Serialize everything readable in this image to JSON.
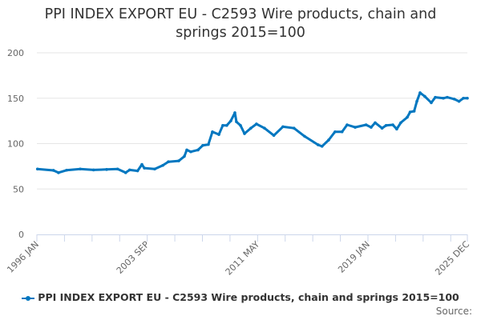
{
  "chart_data": {
    "type": "line",
    "title": "PPI INDEX EXPORT EU - C2593 Wire products, chain and springs 2015=100",
    "title_lines": [
      "PPI INDEX EXPORT EU - C2593 Wire products, chain and",
      "springs 2015=100"
    ],
    "xlabel": "",
    "ylabel": "",
    "ylim": [
      0,
      200
    ],
    "xlim": [
      1996.0,
      2025.92
    ],
    "y_ticks": [
      0,
      50,
      100,
      150,
      200
    ],
    "x_ticks": [
      {
        "label": "1996 JAN",
        "x": 1996.0
      },
      {
        "label": "2003 SEP",
        "x": 2003.67
      },
      {
        "label": "2011 MAY",
        "x": 2011.33
      },
      {
        "label": "2019 JAN",
        "x": 2019.0
      },
      {
        "label": "2025 DEC",
        "x": 2025.92
      }
    ],
    "grid": true,
    "legend": "bottom-center",
    "color": "#0077c0",
    "series": [
      {
        "name": "PPI INDEX EXPORT EU - C2593 Wire products, chain and springs 2015=100",
        "x": [
          1996.04,
          1997.15,
          1997.5,
          1998.06,
          1999.01,
          1999.94,
          2000.85,
          2001.61,
          2002.17,
          2002.45,
          2003.0,
          2003.3,
          2003.47,
          2004.19,
          2004.75,
          2005.14,
          2005.86,
          2006.25,
          2006.42,
          2006.7,
          2007.2,
          2007.53,
          2007.92,
          2008.2,
          2008.65,
          2008.92,
          2009.2,
          2009.48,
          2009.76,
          2009.87,
          2010.15,
          2010.43,
          2010.87,
          2011.26,
          2011.82,
          2012.47,
          2013.1,
          2013.87,
          2014.61,
          2015.54,
          2015.82,
          2016.28,
          2016.72,
          2017.21,
          2017.56,
          2018.12,
          2018.88,
          2019.23,
          2019.51,
          2019.99,
          2020.27,
          2020.74,
          2021.01,
          2021.29,
          2021.74,
          2021.94,
          2022.22,
          2022.41,
          2022.63,
          2022.96,
          2023.41,
          2023.69,
          2024.25,
          2024.52,
          2025.01,
          2025.34,
          2025.64,
          2025.92
        ],
        "values": [
          72,
          70.5,
          68,
          70.7,
          72,
          71,
          71.5,
          72,
          68,
          71,
          70,
          77,
          73,
          72,
          76,
          80,
          81,
          86,
          93,
          91,
          93,
          98,
          99,
          113,
          110,
          120,
          120,
          125,
          134,
          124,
          120,
          111,
          117,
          121.6,
          117,
          109,
          118.6,
          117,
          108,
          98.7,
          97,
          104,
          113,
          113,
          120.7,
          118,
          120.7,
          118,
          123,
          117,
          120,
          120.7,
          116,
          123,
          129,
          134.8,
          135.7,
          146.5,
          156,
          152,
          145,
          151,
          150,
          151,
          149,
          146.5,
          150,
          150
        ]
      }
    ]
  },
  "source_label": "Source:"
}
